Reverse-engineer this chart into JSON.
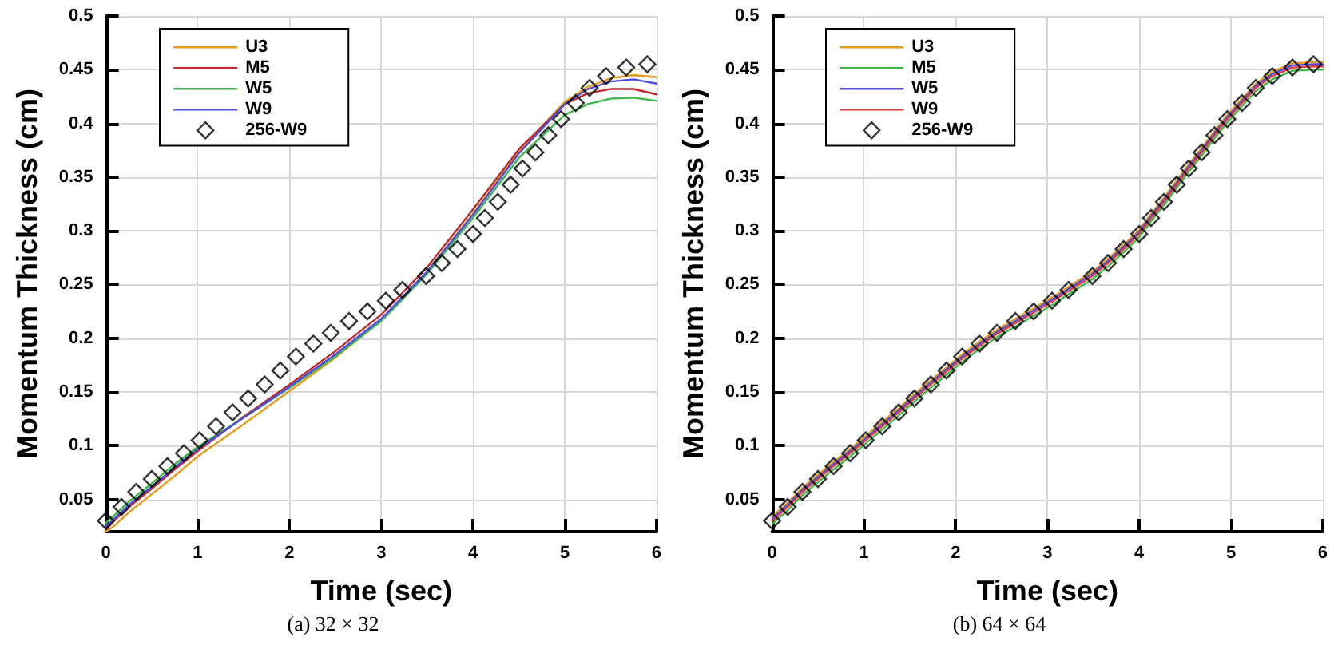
{
  "chart_data": [
    {
      "type": "line",
      "title": "(a) 32 × 32",
      "xlabel": "Time (sec)",
      "ylabel": "Momentum Thickness (cm)",
      "xlim": [
        0,
        6
      ],
      "xticks": [
        0,
        1,
        2,
        3,
        4,
        5,
        6
      ],
      "ylim": [
        0.02,
        0.5
      ],
      "yticks": [
        0.05,
        0.1,
        0.15,
        0.2,
        0.25,
        0.3,
        0.35,
        0.4,
        0.45,
        0.5
      ],
      "grid": true,
      "legend": "top left",
      "line_style": "solid",
      "x": [
        0,
        0.1,
        0.25,
        0.5,
        0.75,
        1,
        1.5,
        2,
        2.5,
        3,
        3.5,
        4,
        4.5,
        5,
        5.25,
        5.5,
        5.75,
        6
      ],
      "series": [
        {
          "name": "U3",
          "color": "#e69b1f",
          "marker": "none",
          "values": [
            0.02,
            0.026,
            0.038,
            0.055,
            0.072,
            0.09,
            0.12,
            0.151,
            0.182,
            0.217,
            0.262,
            0.316,
            0.374,
            0.42,
            0.434,
            0.442,
            0.445,
            0.443
          ]
        },
        {
          "name": "M5",
          "color": "#c0282b",
          "marker": "none",
          "values": [
            0.022,
            0.031,
            0.043,
            0.06,
            0.078,
            0.095,
            0.127,
            0.157,
            0.188,
            0.222,
            0.266,
            0.32,
            0.376,
            0.418,
            0.428,
            0.432,
            0.432,
            0.427
          ]
        },
        {
          "name": "W5",
          "color": "#3cb94a",
          "marker": "none",
          "values": [
            0.028,
            0.036,
            0.048,
            0.065,
            0.083,
            0.099,
            0.126,
            0.154,
            0.183,
            0.216,
            0.26,
            0.312,
            0.368,
            0.408,
            0.418,
            0.423,
            0.424,
            0.421
          ]
        },
        {
          "name": "W9",
          "color": "#4c4ce0",
          "marker": "none",
          "values": [
            0.025,
            0.033,
            0.045,
            0.062,
            0.08,
            0.097,
            0.126,
            0.155,
            0.185,
            0.218,
            0.262,
            0.315,
            0.372,
            0.418,
            0.432,
            0.439,
            0.441,
            0.437
          ]
        },
        {
          "name": "256-W9",
          "type": "scatter",
          "color": "#000000",
          "marker": "diamond",
          "x": [
            0,
            0.17,
            0.33,
            0.5,
            0.67,
            0.85,
            1.02,
            1.2,
            1.38,
            1.55,
            1.73,
            1.9,
            2.07,
            2.26,
            2.45,
            2.65,
            2.85,
            3.05,
            3.23,
            3.49,
            3.66,
            3.83,
            4.0,
            4.13,
            4.27,
            4.41,
            4.54,
            4.68,
            4.82,
            4.96,
            5.12,
            5.27,
            5.45,
            5.67,
            5.9
          ],
          "values": [
            0.03,
            0.043,
            0.057,
            0.069,
            0.081,
            0.093,
            0.105,
            0.118,
            0.131,
            0.144,
            0.157,
            0.17,
            0.183,
            0.195,
            0.205,
            0.216,
            0.225,
            0.235,
            0.245,
            0.258,
            0.27,
            0.283,
            0.297,
            0.312,
            0.327,
            0.343,
            0.358,
            0.373,
            0.389,
            0.404,
            0.419,
            0.433,
            0.444,
            0.452,
            0.455
          ]
        }
      ]
    },
    {
      "type": "line",
      "title": "(b) 64 × 64",
      "xlabel": "Time (sec)",
      "ylabel": "Momentum Thickness (cm)",
      "xlim": [
        0,
        6
      ],
      "xticks": [
        0,
        1,
        2,
        3,
        4,
        5,
        6
      ],
      "ylim": [
        0.02,
        0.5
      ],
      "yticks": [
        0.05,
        0.1,
        0.15,
        0.2,
        0.25,
        0.3,
        0.35,
        0.4,
        0.45,
        0.5
      ],
      "grid": true,
      "legend": "top left",
      "line_style": "solid",
      "x": [
        0,
        0.17,
        0.33,
        0.5,
        0.67,
        0.85,
        1.02,
        1.2,
        1.38,
        1.55,
        1.73,
        1.9,
        2.07,
        2.26,
        2.45,
        2.65,
        2.85,
        3.05,
        3.23,
        3.49,
        3.66,
        3.83,
        4.0,
        4.13,
        4.27,
        4.41,
        4.54,
        4.68,
        4.82,
        4.96,
        5.12,
        5.27,
        5.45,
        5.67,
        5.9,
        6
      ],
      "series": [
        {
          "name": "U3",
          "color": "#e69b1f",
          "marker": "none",
          "values": [
            0.034,
            0.047,
            0.061,
            0.073,
            0.085,
            0.097,
            0.109,
            0.122,
            0.135,
            0.148,
            0.161,
            0.173,
            0.185,
            0.197,
            0.208,
            0.218,
            0.228,
            0.238,
            0.248,
            0.262,
            0.274,
            0.287,
            0.301,
            0.316,
            0.331,
            0.347,
            0.362,
            0.377,
            0.393,
            0.408,
            0.423,
            0.437,
            0.448,
            0.456,
            0.457,
            0.457
          ]
        },
        {
          "name": "M5",
          "color": "#3cb94a",
          "marker": "none",
          "values": [
            0.027,
            0.04,
            0.054,
            0.066,
            0.078,
            0.09,
            0.102,
            0.115,
            0.128,
            0.141,
            0.154,
            0.166,
            0.178,
            0.19,
            0.201,
            0.211,
            0.221,
            0.231,
            0.241,
            0.255,
            0.267,
            0.28,
            0.294,
            0.309,
            0.324,
            0.34,
            0.355,
            0.37,
            0.386,
            0.401,
            0.416,
            0.43,
            0.441,
            0.449,
            0.45,
            0.45
          ]
        },
        {
          "name": "W5",
          "color": "#4c4ce0",
          "marker": "none",
          "values": [
            0.032,
            0.045,
            0.059,
            0.071,
            0.083,
            0.095,
            0.107,
            0.12,
            0.133,
            0.146,
            0.159,
            0.171,
            0.183,
            0.195,
            0.206,
            0.216,
            0.226,
            0.236,
            0.246,
            0.26,
            0.272,
            0.285,
            0.299,
            0.314,
            0.329,
            0.345,
            0.36,
            0.375,
            0.391,
            0.406,
            0.421,
            0.435,
            0.446,
            0.454,
            0.455,
            0.455
          ]
        },
        {
          "name": "W9",
          "color": "#e03c3c",
          "marker": "none",
          "values": [
            0.03,
            0.043,
            0.057,
            0.069,
            0.081,
            0.093,
            0.105,
            0.118,
            0.131,
            0.144,
            0.157,
            0.169,
            0.181,
            0.193,
            0.204,
            0.214,
            0.224,
            0.234,
            0.244,
            0.258,
            0.27,
            0.283,
            0.297,
            0.312,
            0.327,
            0.343,
            0.358,
            0.373,
            0.389,
            0.404,
            0.419,
            0.433,
            0.444,
            0.452,
            0.453,
            0.453
          ]
        },
        {
          "name": "256-W9",
          "type": "scatter",
          "color": "#000000",
          "marker": "diamond",
          "x": [
            0,
            0.17,
            0.33,
            0.5,
            0.67,
            0.85,
            1.02,
            1.2,
            1.38,
            1.55,
            1.73,
            1.9,
            2.07,
            2.26,
            2.45,
            2.65,
            2.85,
            3.05,
            3.23,
            3.49,
            3.66,
            3.83,
            4.0,
            4.13,
            4.27,
            4.41,
            4.54,
            4.68,
            4.82,
            4.96,
            5.12,
            5.27,
            5.45,
            5.67,
            5.9
          ],
          "values": [
            0.03,
            0.043,
            0.057,
            0.069,
            0.081,
            0.093,
            0.105,
            0.118,
            0.131,
            0.144,
            0.157,
            0.17,
            0.183,
            0.195,
            0.205,
            0.216,
            0.225,
            0.235,
            0.245,
            0.258,
            0.27,
            0.283,
            0.297,
            0.312,
            0.327,
            0.343,
            0.358,
            0.373,
            0.389,
            0.404,
            0.419,
            0.433,
            0.444,
            0.452,
            0.455
          ]
        }
      ]
    }
  ]
}
